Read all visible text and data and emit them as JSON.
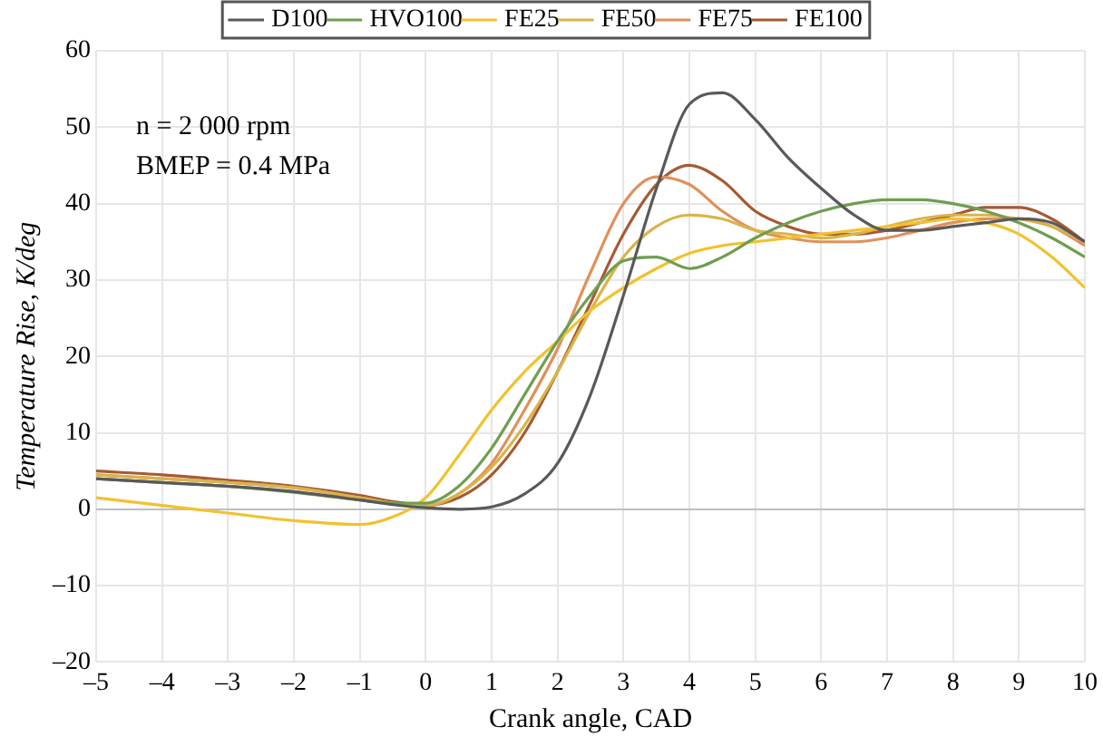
{
  "chart_data": {
    "type": "line",
    "xlabel": "Crank angle, CAD",
    "ylabel": "Temperature Rise, K/deg",
    "x": [
      -5,
      -4,
      -3,
      -2,
      -1,
      -0.5,
      0,
      0.5,
      1,
      1.5,
      2,
      2.5,
      3,
      3.5,
      4,
      4.5,
      5,
      5.5,
      6,
      6.5,
      7,
      7.5,
      8,
      8.5,
      9,
      9.5,
      10
    ],
    "series": [
      {
        "name": "D100",
        "color": "#595959",
        "values": [
          4,
          3.5,
          3,
          2.3,
          1.2,
          0.6,
          0.2,
          0,
          0.3,
          2,
          6,
          15,
          28,
          42,
          53,
          54.5,
          51,
          46,
          42,
          38.5,
          36.5,
          36.5,
          37,
          37.5,
          38,
          37.5,
          35
        ]
      },
      {
        "name": "HVO100",
        "color": "#6f9e4f",
        "values": [
          4,
          3.5,
          3,
          2.2,
          1.2,
          0.8,
          0.8,
          3,
          8,
          15,
          22,
          28,
          32.5,
          33,
          31.5,
          33,
          35.5,
          37.5,
          39,
          40,
          40.5,
          40.5,
          40,
          39,
          37.5,
          35.5,
          33
        ]
      },
      {
        "name": "FE25",
        "color": "#f2c12e",
        "values": [
          1.5,
          0.5,
          -0.5,
          -1.5,
          -2,
          -1,
          1.5,
          7,
          13,
          18,
          22,
          26,
          29,
          31.5,
          33.5,
          34.5,
          35,
          35.5,
          36,
          36.5,
          37,
          37.5,
          38,
          37.5,
          36,
          33,
          29
        ]
      },
      {
        "name": "FE50",
        "color": "#d9b44a",
        "values": [
          4.5,
          4,
          3.5,
          2.8,
          1.5,
          0.8,
          0.5,
          2,
          5.5,
          11,
          18,
          26,
          33,
          37,
          38.5,
          38,
          36.5,
          36,
          35.5,
          36,
          37,
          38,
          38.5,
          38.5,
          38,
          37,
          35
        ]
      },
      {
        "name": "FE75",
        "color": "#e0905a",
        "values": [
          4.5,
          4,
          3.5,
          2.8,
          1.5,
          0.8,
          0.4,
          2,
          6,
          13,
          21,
          31,
          40,
          43.5,
          42.5,
          39,
          36.5,
          35.5,
          35,
          35,
          35.5,
          36.5,
          37.5,
          38,
          38,
          37,
          34.5
        ]
      },
      {
        "name": "FE100",
        "color": "#a65a35",
        "values": [
          5,
          4.5,
          3.8,
          3,
          1.8,
          1,
          0.5,
          1.5,
          4.5,
          10,
          18,
          27,
          36,
          42.5,
          45,
          43,
          39,
          37,
          36,
          36,
          36.5,
          37.5,
          38.5,
          39.5,
          39.5,
          38,
          35
        ]
      }
    ],
    "xlim": [
      -5,
      10
    ],
    "xticks": [
      {
        "value": -5,
        "label": "–5"
      },
      {
        "value": -4,
        "label": "–4"
      },
      {
        "value": -3,
        "label": "–3"
      },
      {
        "value": -2,
        "label": "–2"
      },
      {
        "value": -1,
        "label": "–1"
      },
      0,
      1,
      2,
      3,
      4,
      5,
      6,
      7,
      8,
      9,
      10
    ],
    "ylim": [
      -20,
      60
    ],
    "yticks": [
      {
        "value": -20,
        "label": "–20"
      },
      {
        "value": -10,
        "label": "–10"
      },
      0,
      10,
      20,
      30,
      40,
      50,
      60
    ],
    "annotations": [
      "n = 2 000 rpm",
      "BMEP = 0.4 MPa"
    ],
    "grid": true,
    "legend": "top",
    "marker": "none",
    "line_style": "solid"
  }
}
